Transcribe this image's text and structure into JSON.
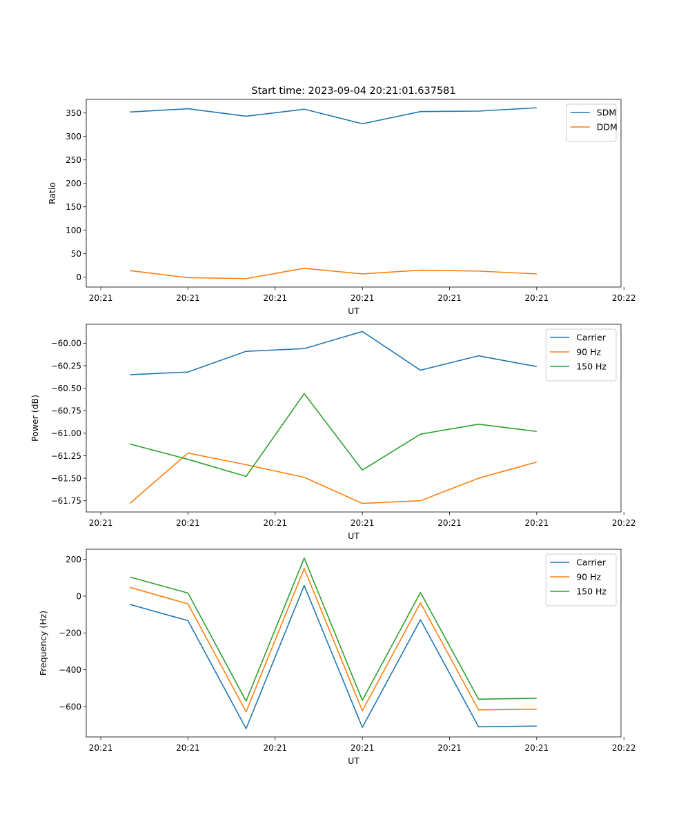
{
  "chart_data": [
    {
      "type": "line",
      "title": "Start time: 2023-09-04 20:21:01.637581",
      "xlabel": "UT",
      "ylabel": "Ratio",
      "x": [
        0,
        1,
        2,
        3,
        4,
        5,
        6,
        7
      ],
      "xlim": [
        -0.75,
        8.45
      ],
      "ylim": [
        -21,
        379
      ],
      "yticks": [
        0,
        50,
        100,
        150,
        200,
        250,
        300,
        350
      ],
      "ytick_labels": [
        "0",
        "50",
        "100",
        "150",
        "200",
        "250",
        "300",
        "350"
      ],
      "xticks": [
        -0.5,
        1.0,
        2.5,
        4.0,
        5.5,
        7.0,
        8.5
      ],
      "xtick_labels": [
        "20:21",
        "20:21",
        "20:21",
        "20:21",
        "20:21",
        "20:21",
        "20:22"
      ],
      "legend": "top-right",
      "series": [
        {
          "name": "SDM",
          "color": "#1f77b4",
          "values": [
            352,
            359,
            343,
            358,
            327,
            353,
            354,
            361
          ]
        },
        {
          "name": "DDM",
          "color": "#ff7f0e",
          "values": [
            14,
            -1,
            -3,
            19,
            7,
            15,
            13,
            7
          ]
        }
      ]
    },
    {
      "type": "line",
      "title": "",
      "xlabel": "UT",
      "ylabel": "Power (dB)",
      "x": [
        0,
        1,
        2,
        3,
        4,
        5,
        6,
        7
      ],
      "xlim": [
        -0.75,
        8.45
      ],
      "ylim": [
        -61.875,
        -59.79
      ],
      "yticks": [
        -61.75,
        -61.5,
        -61.25,
        -61.0,
        -60.75,
        -60.5,
        -60.25,
        -60.0
      ],
      "ytick_labels": [
        "−61.75",
        "−61.50",
        "−61.25",
        "−61.00",
        "−60.75",
        "−60.50",
        "−60.25",
        "−60.00"
      ],
      "xticks": [
        -0.5,
        1.0,
        2.5,
        4.0,
        5.5,
        7.0,
        8.5
      ],
      "xtick_labels": [
        "20:21",
        "20:21",
        "20:21",
        "20:21",
        "20:21",
        "20:21",
        "20:22"
      ],
      "legend": "top-right",
      "series": [
        {
          "name": "Carrier",
          "color": "#1f77b4",
          "values": [
            -60.35,
            -60.32,
            -60.09,
            -60.06,
            -59.87,
            -60.3,
            -60.14,
            -60.26
          ]
        },
        {
          "name": "90 Hz",
          "color": "#ff7f0e",
          "values": [
            -61.78,
            -61.22,
            -61.35,
            -61.49,
            -61.78,
            -61.75,
            -61.5,
            -61.32
          ]
        },
        {
          "name": "150 Hz",
          "color": "#2ca02c",
          "values": [
            -61.12,
            -61.29,
            -61.48,
            -60.56,
            -61.41,
            -61.01,
            -60.9,
            -60.98
          ]
        }
      ]
    },
    {
      "type": "line",
      "title": "",
      "xlabel": "UT",
      "ylabel": "Frequency (Hz)",
      "x": [
        0,
        1,
        2,
        3,
        4,
        5,
        6,
        7
      ],
      "xlim": [
        -0.75,
        8.45
      ],
      "ylim": [
        -765,
        255
      ],
      "yticks": [
        -600,
        -400,
        -200,
        0,
        200
      ],
      "ytick_labels": [
        "−600",
        "−400",
        "−200",
        "0",
        "200"
      ],
      "xticks": [
        -0.5,
        1.0,
        2.5,
        4.0,
        5.5,
        7.0,
        8.5
      ],
      "xtick_labels": [
        "20:21",
        "20:21",
        "20:21",
        "20:21",
        "20:21",
        "20:21",
        "20:22"
      ],
      "legend": "top-right",
      "series": [
        {
          "name": "Carrier",
          "color": "#1f77b4",
          "values": [
            -45,
            -133,
            -720,
            58,
            -713,
            -128,
            -710,
            -706
          ]
        },
        {
          "name": "90 Hz",
          "color": "#ff7f0e",
          "values": [
            48,
            -42,
            -628,
            150,
            -623,
            -36,
            -618,
            -614
          ]
        },
        {
          "name": "150 Hz",
          "color": "#2ca02c",
          "values": [
            104,
            17,
            -570,
            207,
            -566,
            20,
            -560,
            -555
          ]
        }
      ]
    }
  ]
}
